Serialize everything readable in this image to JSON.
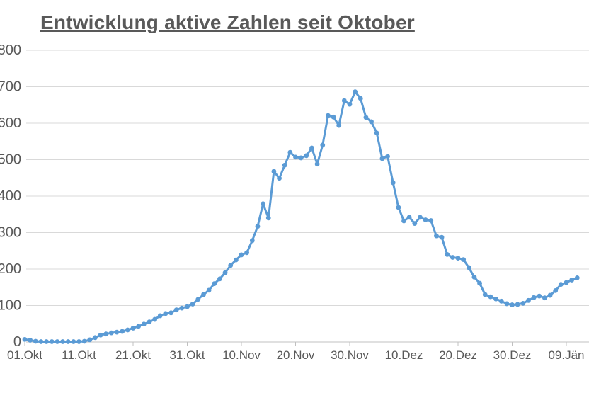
{
  "chart_data": {
    "type": "line",
    "title": "Entwicklung aktive Zahlen seit Oktober",
    "xlabel": "",
    "ylabel": "",
    "x_labels": [
      "01.Okt",
      "11.Okt",
      "21.Okt",
      "31.Okt",
      "10.Nov",
      "20.Nov",
      "30.Nov",
      "10.Dez",
      "20.Dez",
      "30.Dez",
      "09.Jän"
    ],
    "label_interval": 10,
    "values": [
      7,
      5,
      2,
      1,
      1,
      1,
      1,
      1,
      1,
      1,
      1,
      2,
      6,
      12,
      19,
      22,
      25,
      27,
      29,
      33,
      38,
      43,
      49,
      55,
      62,
      72,
      78,
      80,
      88,
      93,
      97,
      104,
      117,
      130,
      142,
      160,
      173,
      190,
      210,
      225,
      239,
      245,
      278,
      317,
      379,
      340,
      468,
      449,
      485,
      520,
      507,
      505,
      511,
      532,
      488,
      540,
      621,
      617,
      594,
      662,
      652,
      686,
      668,
      616,
      604,
      573,
      503,
      509,
      437,
      369,
      332,
      342,
      325,
      342,
      335,
      333,
      291,
      287,
      240,
      232,
      230,
      226,
      204,
      178,
      161,
      130,
      124,
      118,
      112,
      105,
      102,
      103,
      106,
      114,
      122,
      126,
      121,
      128,
      141,
      158,
      163,
      170,
      176
    ],
    "ylim": [
      0,
      800
    ],
    "ytick_step": 100,
    "grid": true,
    "legend": "none",
    "markers": true,
    "colors": {
      "line": "#5B9BD5",
      "marker": "#5B9BD5",
      "grid": "#D9D9D9",
      "axis": "#C0C0C0",
      "text": "#595959",
      "title": "#595959"
    }
  }
}
